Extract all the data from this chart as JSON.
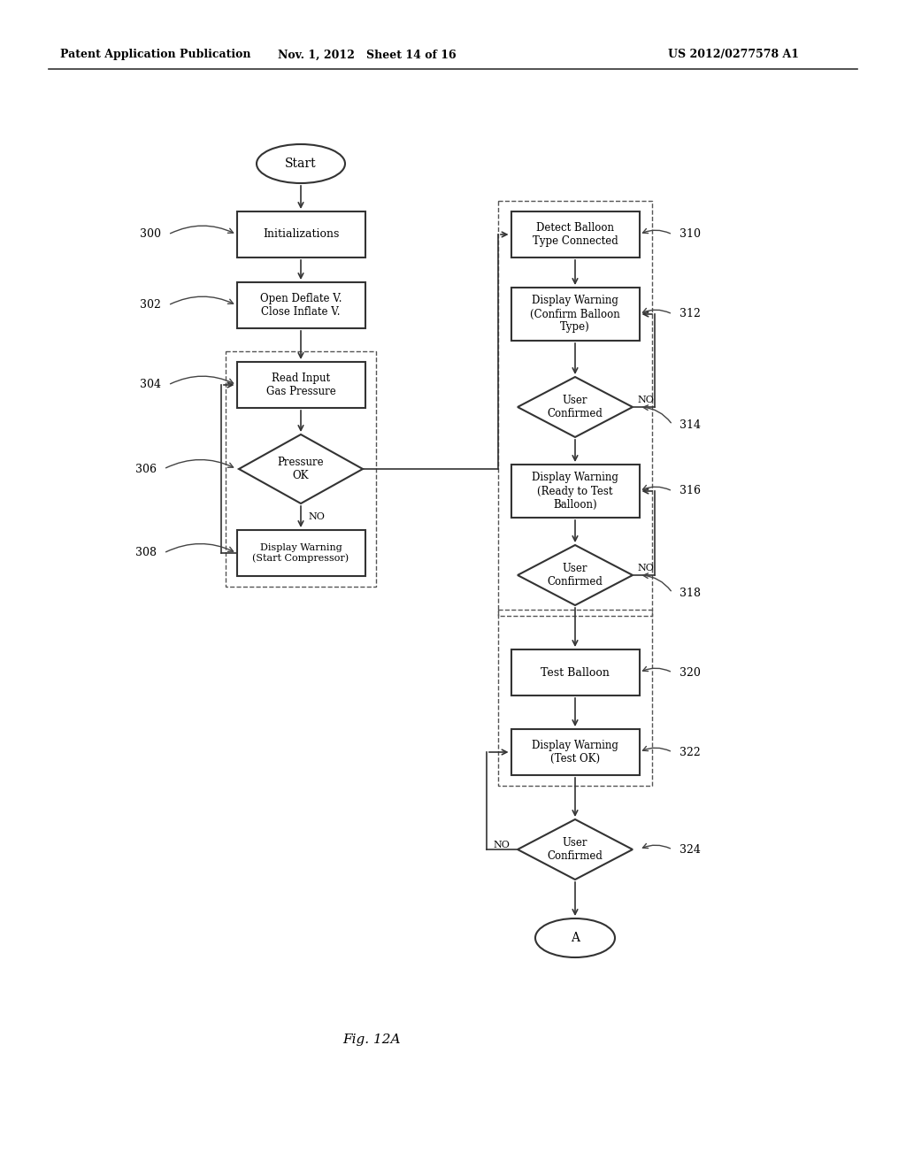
{
  "header_left": "Patent Application Publication",
  "header_center": "Nov. 1, 2012   Sheet 14 of 16",
  "header_right": "US 2012/0277578 A1",
  "fig_label": "Fig. 12A",
  "background_color": "#ffffff"
}
